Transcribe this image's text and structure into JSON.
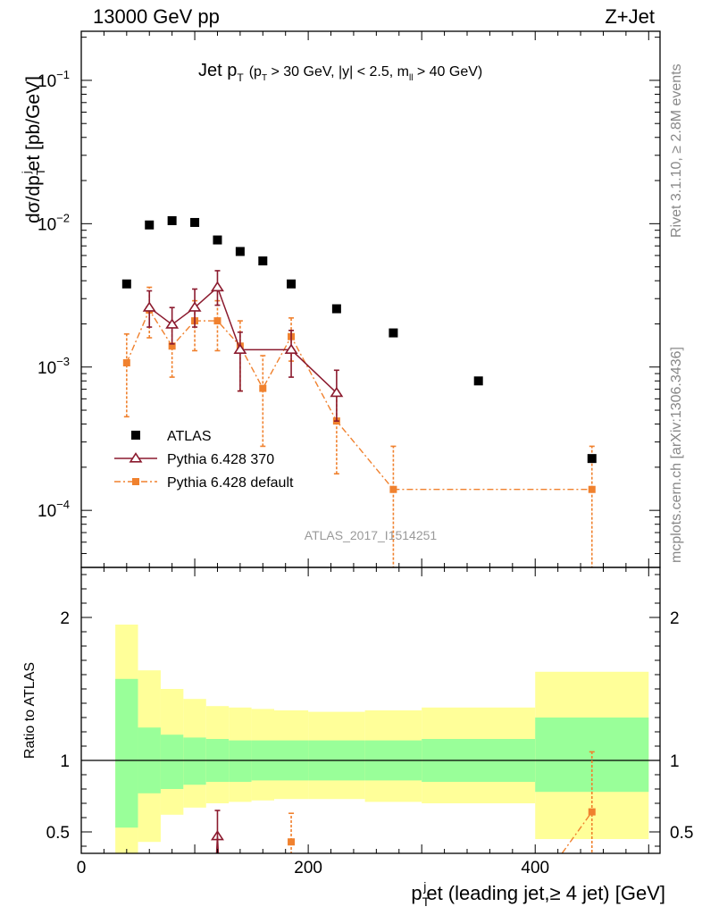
{
  "header": {
    "left": "13000 GeV pp",
    "right": "Z+Jet"
  },
  "side_labels": {
    "rivet": "Rivet 3.1.10, ≥ 2.8M events",
    "mcplots": "mcplots.cern.ch [arXiv:1306.3436]"
  },
  "chart_data": [
    {
      "type": "scatter",
      "panel": "main",
      "title_main": "Jet p",
      "title_sub": "T",
      "title_cond": "(p",
      "title_cond_sub": "T",
      "title_cond_rest": " > 30 GeV, |y| < 2.5, m",
      "title_cond_sub2": "ll",
      "title_cond_end": " > 40 GeV)",
      "ylabel": "dσ/dp",
      "ylabel_sub": "T",
      "ylabel_sup": "j",
      "ylabel_rest": "et [pb/GeV]",
      "watermark": "ATLAS_2017_I1514251",
      "yscale": "log",
      "xlim": [
        0,
        510
      ],
      "ylim": [
        4e-05,
        0.22
      ],
      "ytick_labels": [
        {
          "value": 0.1,
          "base": "10",
          "exp": "−1"
        },
        {
          "value": 0.01,
          "base": "10",
          "exp": "−2"
        },
        {
          "value": 0.001,
          "base": "10",
          "exp": "−3"
        },
        {
          "value": 0.0001,
          "base": "10",
          "exp": "−4"
        }
      ],
      "legend_position": "lower-left",
      "series": [
        {
          "name": "ATLAS",
          "color": "#000000",
          "marker": "square",
          "points": [
            {
              "x": 40,
              "y": 0.0038
            },
            {
              "x": 60,
              "y": 0.0098
            },
            {
              "x": 80,
              "y": 0.0105
            },
            {
              "x": 100,
              "y": 0.0102
            },
            {
              "x": 120,
              "y": 0.0077
            },
            {
              "x": 140,
              "y": 0.0064
            },
            {
              "x": 160,
              "y": 0.0055
            },
            {
              "x": 185,
              "y": 0.0038
            },
            {
              "x": 225,
              "y": 0.00255
            },
            {
              "x": 275,
              "y": 0.00173
            },
            {
              "x": 350,
              "y": 0.0008
            },
            {
              "x": 450,
              "y": 0.00023
            }
          ]
        },
        {
          "name": "Pythia 6.428 370",
          "color": "#8b1a2e",
          "marker": "triangle-open",
          "line": "solid",
          "points": [
            {
              "x": 60,
              "y": 0.0026,
              "lo": 0.0019,
              "hi": 0.0034
            },
            {
              "x": 80,
              "y": 0.00198,
              "lo": 0.00145,
              "hi": 0.0026
            },
            {
              "x": 100,
              "y": 0.0026,
              "lo": 0.0019,
              "hi": 0.0035
            },
            {
              "x": 120,
              "y": 0.0036,
              "lo": 0.0027,
              "hi": 0.0047
            },
            {
              "x": 140,
              "y": 0.00132,
              "lo": 0.00068,
              "hi": 0.00175
            },
            {
              "x": 185,
              "y": 0.00132,
              "lo": 0.00085,
              "hi": 0.0018
            },
            {
              "x": 225,
              "y": 0.00066,
              "lo": 0.00042,
              "hi": 0.00095
            }
          ],
          "step_segments": [
            [
              130,
              185
            ],
            [
              185,
              205
            ]
          ]
        },
        {
          "name": "Pythia 6.428 default",
          "color": "#f0812e",
          "marker": "square-small",
          "line": "dashdot",
          "points": [
            {
              "x": 40,
              "y": 0.00107,
              "lo": 0.00045,
              "hi": 0.0017
            },
            {
              "x": 60,
              "y": 0.0025,
              "lo": 0.0016,
              "hi": 0.0036
            },
            {
              "x": 80,
              "y": 0.0014,
              "lo": 0.00085,
              "hi": 0.002
            },
            {
              "x": 100,
              "y": 0.0021,
              "lo": 0.0013,
              "hi": 0.0029
            },
            {
              "x": 120,
              "y": 0.0021,
              "lo": 0.0013,
              "hi": 0.0029
            },
            {
              "x": 140,
              "y": 0.0014,
              "lo": 0.00068,
              "hi": 0.0021
            },
            {
              "x": 160,
              "y": 0.00071,
              "lo": 0.00028,
              "hi": 0.0012
            },
            {
              "x": 185,
              "y": 0.00163,
              "lo": 0.0011,
              "hi": 0.0022
            },
            {
              "x": 225,
              "y": 0.00042,
              "lo": 0.00018,
              "hi": 0.00068
            },
            {
              "x": 275,
              "y": 0.00014,
              "lo": 1e-05,
              "hi": 0.00028
            },
            {
              "x": 450,
              "y": 0.00014,
              "lo": 1e-05,
              "hi": 0.00028
            }
          ]
        }
      ]
    },
    {
      "type": "scatter",
      "panel": "ratio",
      "ylabel": "Ratio to ATLAS",
      "xlabel": "p",
      "xlabel_sub": "T",
      "xlabel_sup": "j",
      "xlabel_rest": "et (leading jet,≥ 4 jet) [GeV]",
      "xlim": [
        0,
        510
      ],
      "ylim": [
        0.35,
        2.35
      ],
      "xtick_labels": [
        {
          "value": 0,
          "label": "0"
        },
        {
          "value": 200,
          "label": "200"
        },
        {
          "value": 400,
          "label": "400"
        }
      ],
      "ytick_labels": [
        {
          "value": 2,
          "label": "2"
        },
        {
          "value": 1,
          "label": "1"
        },
        {
          "value": 0.5,
          "label": "0.5"
        }
      ],
      "bands": {
        "inner_color": "#99ff99",
        "outer_color": "#ffff99",
        "bins": [
          {
            "x0": 30,
            "x1": 50,
            "in_lo": 0.53,
            "in_hi": 1.57,
            "out_lo": 0.2,
            "out_hi": 1.95
          },
          {
            "x0": 50,
            "x1": 70,
            "in_lo": 0.77,
            "in_hi": 1.23,
            "out_lo": 0.43,
            "out_hi": 1.63
          },
          {
            "x0": 70,
            "x1": 90,
            "in_lo": 0.8,
            "in_hi": 1.18,
            "out_lo": 0.62,
            "out_hi": 1.5
          },
          {
            "x0": 90,
            "x1": 110,
            "in_lo": 0.83,
            "in_hi": 1.16,
            "out_lo": 0.67,
            "out_hi": 1.43
          },
          {
            "x0": 110,
            "x1": 130,
            "in_lo": 0.85,
            "in_hi": 1.15,
            "out_lo": 0.7,
            "out_hi": 1.38
          },
          {
            "x0": 130,
            "x1": 150,
            "in_lo": 0.85,
            "in_hi": 1.14,
            "out_lo": 0.71,
            "out_hi": 1.37
          },
          {
            "x0": 150,
            "x1": 170,
            "in_lo": 0.86,
            "in_hi": 1.14,
            "out_lo": 0.72,
            "out_hi": 1.36
          },
          {
            "x0": 170,
            "x1": 200,
            "in_lo": 0.86,
            "in_hi": 1.14,
            "out_lo": 0.73,
            "out_hi": 1.35
          },
          {
            "x0": 200,
            "x1": 250,
            "in_lo": 0.86,
            "in_hi": 1.14,
            "out_lo": 0.73,
            "out_hi": 1.34
          },
          {
            "x0": 250,
            "x1": 300,
            "in_lo": 0.86,
            "in_hi": 1.14,
            "out_lo": 0.71,
            "out_hi": 1.35
          },
          {
            "x0": 300,
            "x1": 400,
            "in_lo": 0.85,
            "in_hi": 1.15,
            "out_lo": 0.7,
            "out_hi": 1.37
          },
          {
            "x0": 400,
            "x1": 500,
            "in_lo": 0.78,
            "in_hi": 1.3,
            "out_lo": 0.45,
            "out_hi": 1.62
          }
        ]
      },
      "series": [
        {
          "name": "Pythia 6.428 370",
          "color": "#8b1a2e",
          "points": [
            {
              "x": 120,
              "y": 0.47,
              "lo": 0.25,
              "hi": 0.65
            }
          ],
          "lines": [
            [
              [
                117,
                0.0
              ],
              [
                120,
                0.47
              ],
              [
                123,
                0.0
              ]
            ]
          ]
        },
        {
          "name": "Pythia 6.428 default",
          "color": "#f0812e",
          "points": [
            {
              "x": 185,
              "y": 0.43,
              "lo": 0.25,
              "hi": 0.63
            },
            {
              "x": 450,
              "y": 0.64,
              "lo": 0.2,
              "hi": 1.06
            }
          ],
          "lines": [
            [
              [
                410,
                0.2
              ],
              [
                450,
                0.64
              ]
            ]
          ]
        }
      ]
    }
  ]
}
